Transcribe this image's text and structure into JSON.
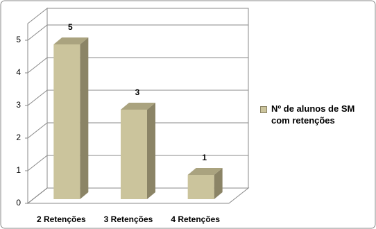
{
  "chart_data": {
    "type": "bar3d",
    "categories": [
      "2 Retenções",
      "3 Retenções",
      "4 Retenções"
    ],
    "series": [
      {
        "name": "Nº de alunos de SM com retenções",
        "color": "#cbc49c",
        "values": [
          5,
          3,
          1
        ]
      }
    ],
    "ylim": [
      0,
      5
    ],
    "yticks": [
      0,
      1,
      2,
      3,
      4,
      5
    ],
    "grid": true,
    "legend": "right"
  }
}
